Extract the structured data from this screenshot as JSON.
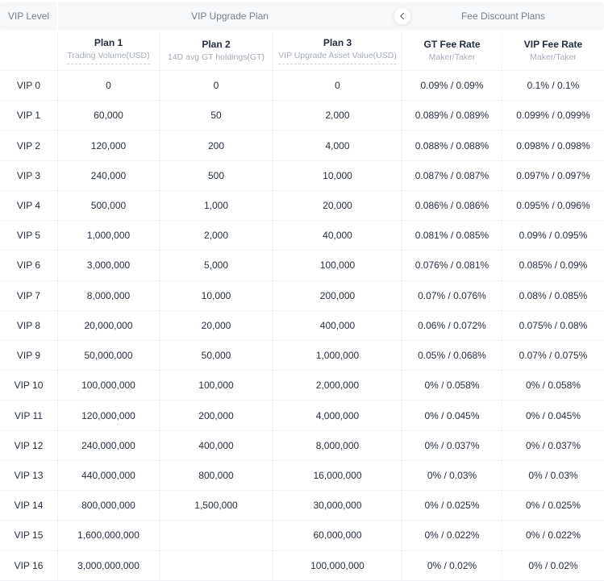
{
  "header_band": {
    "vip_level": "VIP Level",
    "upgrade_plan": "VIP Upgrade Plan",
    "fee_discount": "Fee Discount Plans",
    "collapse_icon": "chevron-left-icon"
  },
  "columns": [
    {
      "title": "Plan 1",
      "subtitle": "Trading Volume(USD)"
    },
    {
      "title": "Plan 2",
      "subtitle": "14D avg GT holdings(GT)"
    },
    {
      "title": "Plan 3",
      "subtitle": "VIP Upgrade Asset Value(USD)"
    },
    {
      "title": "GT Fee Rate",
      "subtitle": "Maker/Taker"
    },
    {
      "title": "VIP Fee Rate",
      "subtitle": "Maker/Taker"
    }
  ],
  "rows": [
    {
      "level": "VIP 0",
      "plan1": "0",
      "plan2": "0",
      "plan3": "0",
      "gt_fee": "0.09% / 0.09%",
      "vip_fee": "0.1% / 0.1%"
    },
    {
      "level": "VIP 1",
      "plan1": "60,000",
      "plan2": "50",
      "plan3": "2,000",
      "gt_fee": "0.089% / 0.089%",
      "vip_fee": "0.099% / 0.099%"
    },
    {
      "level": "VIP 2",
      "plan1": "120,000",
      "plan2": "200",
      "plan3": "4,000",
      "gt_fee": "0.088% / 0.088%",
      "vip_fee": "0.098% / 0.098%"
    },
    {
      "level": "VIP 3",
      "plan1": "240,000",
      "plan2": "500",
      "plan3": "10,000",
      "gt_fee": "0.087% / 0.087%",
      "vip_fee": "0.097% / 0.097%"
    },
    {
      "level": "VIP 4",
      "plan1": "500,000",
      "plan2": "1,000",
      "plan3": "20,000",
      "gt_fee": "0.086% / 0.086%",
      "vip_fee": "0.095% / 0.096%"
    },
    {
      "level": "VIP 5",
      "plan1": "1,000,000",
      "plan2": "2,000",
      "plan3": "40,000",
      "gt_fee": "0.081% / 0.085%",
      "vip_fee": "0.09% / 0.095%"
    },
    {
      "level": "VIP 6",
      "plan1": "3,000,000",
      "plan2": "5,000",
      "plan3": "100,000",
      "gt_fee": "0.076% / 0.081%",
      "vip_fee": "0.085% / 0.09%"
    },
    {
      "level": "VIP 7",
      "plan1": "8,000,000",
      "plan2": "10,000",
      "plan3": "200,000",
      "gt_fee": "0.07% / 0.076%",
      "vip_fee": "0.08% / 0.085%"
    },
    {
      "level": "VIP 8",
      "plan1": "20,000,000",
      "plan2": "20,000",
      "plan3": "400,000",
      "gt_fee": "0.06% / 0.072%",
      "vip_fee": "0.075% / 0.08%"
    },
    {
      "level": "VIP 9",
      "plan1": "50,000,000",
      "plan2": "50,000",
      "plan3": "1,000,000",
      "gt_fee": "0.05% / 0.068%",
      "vip_fee": "0.07% / 0.075%"
    },
    {
      "level": "VIP 10",
      "plan1": "100,000,000",
      "plan2": "100,000",
      "plan3": "2,000,000",
      "gt_fee": "0% / 0.058%",
      "vip_fee": "0% / 0.058%"
    },
    {
      "level": "VIP 11",
      "plan1": "120,000,000",
      "plan2": "200,000",
      "plan3": "4,000,000",
      "gt_fee": "0% / 0.045%",
      "vip_fee": "0% / 0.045%"
    },
    {
      "level": "VIP 12",
      "plan1": "240,000,000",
      "plan2": "400,000",
      "plan3": "8,000,000",
      "gt_fee": "0% / 0.037%",
      "vip_fee": "0% / 0.037%"
    },
    {
      "level": "VIP 13",
      "plan1": "440,000,000",
      "plan2": "800,000",
      "plan3": "16,000,000",
      "gt_fee": "0% / 0.03%",
      "vip_fee": "0% / 0.03%"
    },
    {
      "level": "VIP 14",
      "plan1": "800,000,000",
      "plan2": "1,500,000",
      "plan3": "30,000,000",
      "gt_fee": "0% / 0.025%",
      "vip_fee": "0% / 0.025%"
    },
    {
      "level": "VIP 15",
      "plan1": "1,600,000,000",
      "plan2": "",
      "plan3": "60,000,000",
      "gt_fee": "0% / 0.022%",
      "vip_fee": "0% / 0.022%"
    },
    {
      "level": "VIP 16",
      "plan1": "3,000,000,000",
      "plan2": "",
      "plan3": "100,000,000",
      "gt_fee": "0% / 0.02%",
      "vip_fee": "0% / 0.02%"
    }
  ],
  "colors": {
    "band_background": "#f7f8fa",
    "band_text": "#76808f",
    "header_text": "#252e3f",
    "subtitle_text": "#a6adb8",
    "body_text": "#272f3e",
    "border": "#f0f1f4"
  }
}
